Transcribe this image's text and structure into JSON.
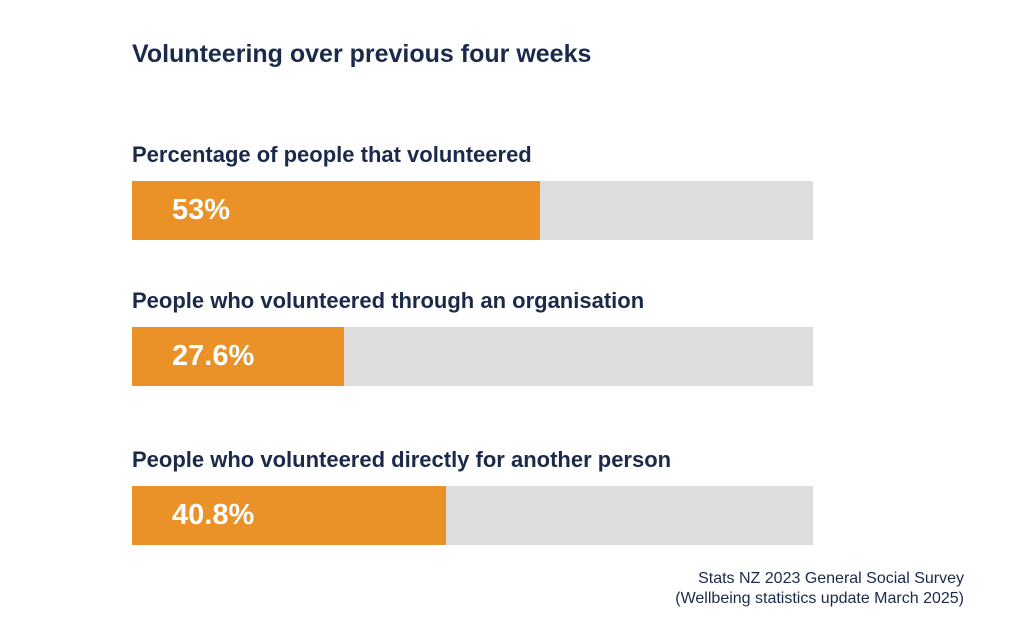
{
  "chart_data": {
    "type": "bar",
    "title": "Volunteering over previous four weeks",
    "xlim": [
      0,
      100
    ],
    "bars": [
      {
        "label": "Percentage of people that volunteered",
        "value": 53,
        "display": "53%"
      },
      {
        "label": "People who volunteered through an organisation",
        "value": 27.6,
        "display": "27.6%"
      },
      {
        "label": "People who volunteered directly for another person",
        "value": 40.8,
        "display": "40.8%"
      }
    ],
    "colors": {
      "fill": "#ea9228",
      "track": "#dddddd",
      "text": "#1b2a4a"
    }
  },
  "source": {
    "line1": "Stats NZ 2023 General Social Survey",
    "line2": "(Wellbeing statistics update March 2025)"
  }
}
